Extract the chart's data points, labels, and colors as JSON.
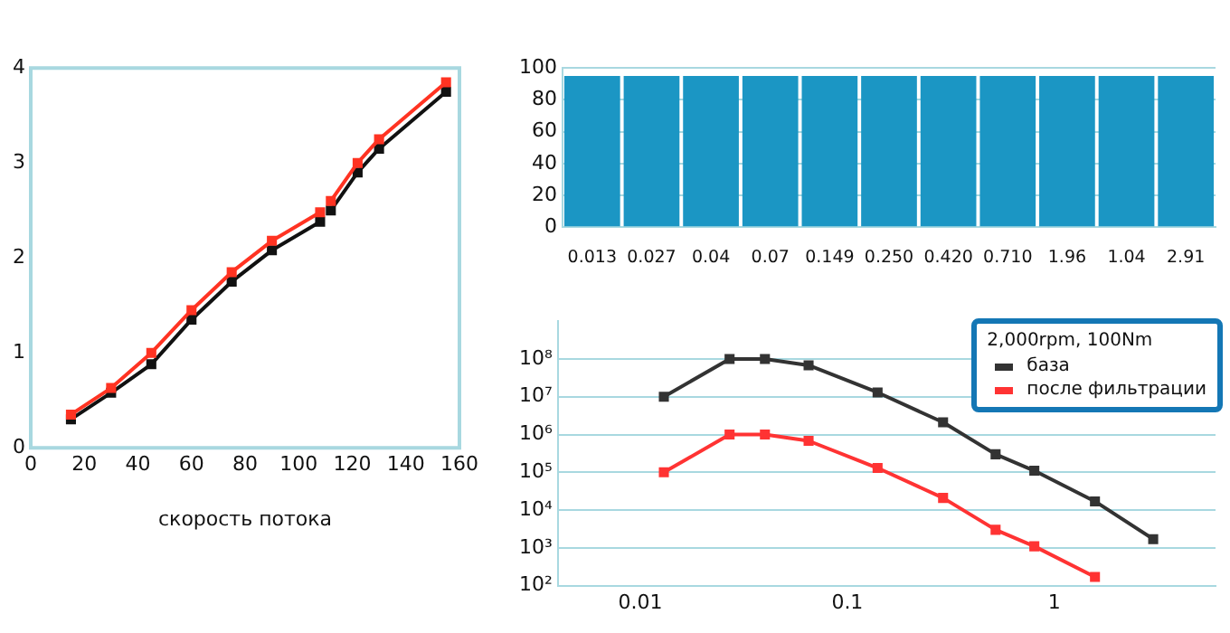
{
  "chart_data": [
    {
      "type": "line",
      "xlabel": "скорость потока",
      "x": [
        15,
        30,
        45,
        60,
        75,
        90,
        108,
        110,
        112,
        122,
        130,
        155
      ],
      "series": [
        {
          "color": "#ff3322",
          "values": [
            0.35,
            0.63,
            1.0,
            1.45,
            1.85,
            2.18,
            2.48,
            null,
            2.6,
            3.0,
            3.25,
            3.85
          ]
        },
        {
          "color": "#111111",
          "values": [
            0.3,
            0.58,
            0.88,
            1.35,
            1.75,
            2.08,
            2.38,
            null,
            2.5,
            2.9,
            3.15,
            3.75
          ]
        }
      ],
      "xlim": [
        0,
        160
      ],
      "xticks": [
        0,
        20,
        40,
        60,
        80,
        100,
        120,
        140,
        160
      ],
      "ylim": [
        0,
        4
      ],
      "yticks": [
        0,
        1,
        2,
        3,
        4
      ],
      "grid": false,
      "legend": false,
      "marker": "square"
    },
    {
      "type": "bar",
      "categories": [
        "0.013",
        "0.027",
        "0.04",
        "0.07",
        "0.149",
        "0.250",
        "0.420",
        "0.710",
        "1.96",
        "1.04",
        "2.91"
      ],
      "values": [
        95,
        95,
        95,
        95,
        95,
        95,
        95,
        95,
        95,
        95,
        95
      ],
      "color": "#1b96c4",
      "ylim": [
        0,
        100
      ],
      "yticks": [
        0,
        20,
        40,
        60,
        80,
        100
      ],
      "grid": "y",
      "legend": false
    },
    {
      "type": "line",
      "legend_title": "2,000rpm, 100Nm",
      "x": [
        0.013,
        0.027,
        0.04,
        0.065,
        0.14,
        0.29,
        0.52,
        0.8,
        1.57,
        3.0
      ],
      "series": [
        {
          "name": "база",
          "color": "#333333",
          "values": [
            10000000.0,
            100000000.0,
            100000000.0,
            68000000.0,
            13000000.0,
            2100000.0,
            300000.0,
            110000.0,
            17000.0,
            1700.0
          ]
        },
        {
          "name": "после фильтрации",
          "color": "#ff3333",
          "values": [
            100000.0,
            1000000.0,
            1000000.0,
            680000.0,
            130000.0,
            21000.0,
            3000.0,
            1100.0,
            170,
            null
          ]
        }
      ],
      "log": "xy",
      "xlim": [
        0.004,
        6
      ],
      "xticks": [
        0.01,
        0.1,
        1
      ],
      "ylim": [
        100,
        1000000000.0
      ],
      "yticks": [
        {
          "value": 100,
          "label": "10²"
        },
        {
          "value": 1000,
          "label": "10³"
        },
        {
          "value": 10000,
          "label": "10⁴"
        },
        {
          "value": 100000,
          "label": "10⁵"
        },
        {
          "value": 1000000,
          "label": "10⁶"
        },
        {
          "value": 10000000,
          "label": "10⁷"
        },
        {
          "value": 100000000,
          "label": "10⁸"
        }
      ],
      "grid": "y",
      "legend": "top right",
      "marker": "square"
    }
  ]
}
